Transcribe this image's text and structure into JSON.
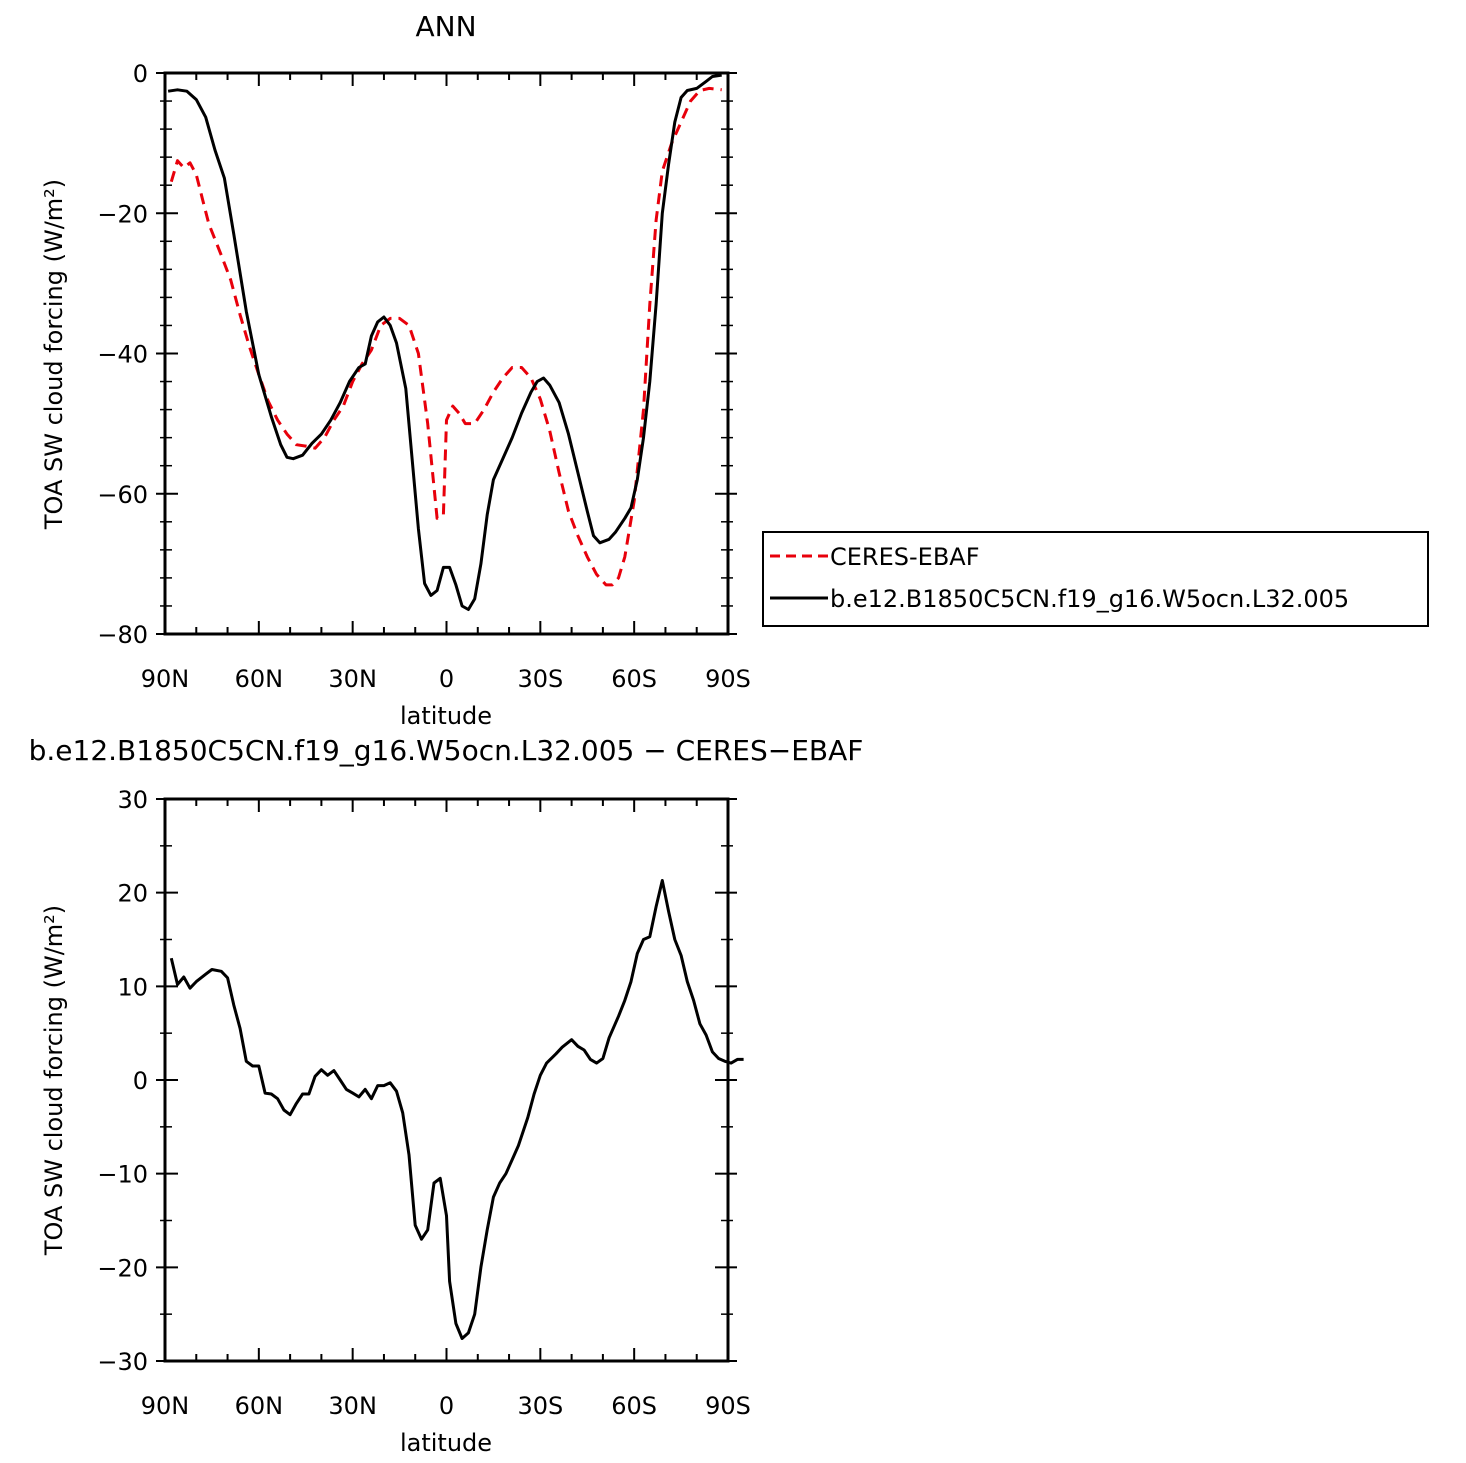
{
  "chart_data": [
    {
      "type": "line",
      "title": "ANN",
      "xlabel": "latitude",
      "ylabel": "TOA SW cloud forcing (W/m²)",
      "xlim": [
        90,
        -90
      ],
      "ylim": [
        -80,
        0
      ],
      "x_ticks": [
        {
          "value": 90,
          "label": "90N"
        },
        {
          "value": 60,
          "label": "60N"
        },
        {
          "value": 30,
          "label": "30N"
        },
        {
          "value": 0,
          "label": "0"
        },
        {
          "value": -30,
          "label": "30S"
        },
        {
          "value": -60,
          "label": "60S"
        },
        {
          "value": -90,
          "label": "90S"
        }
      ],
      "y_ticks": [
        {
          "value": 0,
          "label": "0"
        },
        {
          "value": -20,
          "label": "−20"
        },
        {
          "value": -40,
          "label": "−40"
        },
        {
          "value": -60,
          "label": "−60"
        },
        {
          "value": -80,
          "label": "−80"
        }
      ],
      "legend": {
        "placement": "right"
      },
      "series": [
        {
          "name": "CERES-EBAF",
          "color": "#e8000b",
          "dashed": true,
          "points": [
            [
              88,
              -15.5
            ],
            [
              86,
              -12.5
            ],
            [
              84,
              -13.5
            ],
            [
              82,
              -12.8
            ],
            [
              80,
              -14.5
            ],
            [
              78,
              -18
            ],
            [
              76,
              -21.5
            ],
            [
              72,
              -26
            ],
            [
              69,
              -29.5
            ],
            [
              66,
              -34.5
            ],
            [
              63,
              -39
            ],
            [
              60,
              -43
            ],
            [
              57,
              -46.8
            ],
            [
              54,
              -49.5
            ],
            [
              51,
              -51.5
            ],
            [
              48,
              -53
            ],
            [
              45,
              -53.2
            ],
            [
              42,
              -53.5
            ],
            [
              39,
              -52
            ],
            [
              36,
              -49.5
            ],
            [
              33,
              -47.5
            ],
            [
              30,
              -44
            ],
            [
              27,
              -41.5
            ],
            [
              24,
              -39.5
            ],
            [
              21,
              -36
            ],
            [
              18,
              -35
            ],
            [
              15,
              -35
            ],
            [
              12,
              -36
            ],
            [
              9,
              -40
            ],
            [
              6,
              -50
            ],
            [
              3,
              -63.5
            ],
            [
              1,
              -63
            ],
            [
              0,
              -49.5
            ],
            [
              -2,
              -47.5
            ],
            [
              -4,
              -48.5
            ],
            [
              -6,
              -50
            ],
            [
              -9,
              -50
            ],
            [
              -12,
              -48
            ],
            [
              -15,
              -45.5
            ],
            [
              -18,
              -43.5
            ],
            [
              -21,
              -42
            ],
            [
              -24,
              -42
            ],
            [
              -27,
              -43.5
            ],
            [
              -30,
              -46.5
            ],
            [
              -33,
              -51
            ],
            [
              -36,
              -57
            ],
            [
              -39,
              -62.5
            ],
            [
              -42,
              -66
            ],
            [
              -45,
              -69
            ],
            [
              -48,
              -71.5
            ],
            [
              -51,
              -73
            ],
            [
              -53,
              -73
            ],
            [
              -55,
              -72
            ],
            [
              -57,
              -69
            ],
            [
              -60,
              -61
            ],
            [
              -63,
              -48
            ],
            [
              -65,
              -33
            ],
            [
              -67,
              -21
            ],
            [
              -69,
              -14
            ],
            [
              -72,
              -10
            ],
            [
              -75,
              -7
            ],
            [
              -78,
              -4
            ],
            [
              -81,
              -2.5
            ],
            [
              -84,
              -2.2
            ],
            [
              -88,
              -2.4
            ]
          ]
        },
        {
          "name": "b.e12.B1850C5CN.f19_g16.W5ocn.L32.005",
          "color": "#000000",
          "dashed": false,
          "points": [
            [
              89,
              -2.6
            ],
            [
              86,
              -2.4
            ],
            [
              83,
              -2.6
            ],
            [
              80,
              -3.8
            ],
            [
              77,
              -6.3
            ],
            [
              74,
              -11
            ],
            [
              71,
              -15
            ],
            [
              68,
              -23
            ],
            [
              64,
              -34
            ],
            [
              60,
              -43
            ],
            [
              56,
              -49
            ],
            [
              53,
              -53
            ],
            [
              51,
              -54.8
            ],
            [
              49,
              -55
            ],
            [
              46,
              -54.5
            ],
            [
              43,
              -52.8
            ],
            [
              40,
              -51.5
            ],
            [
              37,
              -49.5
            ],
            [
              34,
              -47
            ],
            [
              31,
              -44
            ],
            [
              28,
              -42
            ],
            [
              26,
              -41.5
            ],
            [
              24,
              -37.5
            ],
            [
              22,
              -35.5
            ],
            [
              20,
              -34.8
            ],
            [
              18,
              -36
            ],
            [
              16,
              -38.5
            ],
            [
              13,
              -45
            ],
            [
              11,
              -55
            ],
            [
              9,
              -65
            ],
            [
              7,
              -72.8
            ],
            [
              5,
              -74.5
            ],
            [
              3,
              -73.8
            ],
            [
              1,
              -70.5
            ],
            [
              -1,
              -70.5
            ],
            [
              -3,
              -73
            ],
            [
              -5,
              -76
            ],
            [
              -7,
              -76.5
            ],
            [
              -9,
              -75
            ],
            [
              -11,
              -70
            ],
            [
              -13,
              -63
            ],
            [
              -15,
              -58
            ],
            [
              -18,
              -55
            ],
            [
              -21,
              -52
            ],
            [
              -24,
              -48.5
            ],
            [
              -27,
              -45.5
            ],
            [
              -29,
              -44
            ],
            [
              -31,
              -43.5
            ],
            [
              -33,
              -44.5
            ],
            [
              -36,
              -47
            ],
            [
              -39,
              -51.5
            ],
            [
              -42,
              -57
            ],
            [
              -45,
              -62.5
            ],
            [
              -47,
              -66
            ],
            [
              -49,
              -67
            ],
            [
              -52,
              -66.5
            ],
            [
              -54,
              -65.5
            ],
            [
              -57,
              -63.5
            ],
            [
              -59,
              -62
            ],
            [
              -61,
              -58
            ],
            [
              -63,
              -52
            ],
            [
              -65,
              -44
            ],
            [
              -67,
              -33
            ],
            [
              -69,
              -20
            ],
            [
              -71,
              -13
            ],
            [
              -73,
              -7
            ],
            [
              -75,
              -3.5
            ],
            [
              -77,
              -2.5
            ],
            [
              -80,
              -2.2
            ],
            [
              -83,
              -1.2
            ],
            [
              -85,
              -0.5
            ],
            [
              -88,
              -0.3
            ]
          ]
        }
      ]
    },
    {
      "type": "line",
      "title": "b.e12.B1850C5CN.f19_g16.W5ocn.L32.005 − CERES−EBAF",
      "xlabel": "latitude",
      "ylabel": "TOA SW cloud forcing (W/m²)",
      "xlim": [
        90,
        -90
      ],
      "ylim": [
        -30,
        30
      ],
      "x_ticks": [
        {
          "value": 90,
          "label": "90N"
        },
        {
          "value": 60,
          "label": "60N"
        },
        {
          "value": 30,
          "label": "30N"
        },
        {
          "value": 0,
          "label": "0"
        },
        {
          "value": -30,
          "label": "30S"
        },
        {
          "value": -60,
          "label": "60S"
        },
        {
          "value": -90,
          "label": "90S"
        }
      ],
      "y_ticks": [
        {
          "value": 30,
          "label": "30"
        },
        {
          "value": 20,
          "label": "20"
        },
        {
          "value": 10,
          "label": "10"
        },
        {
          "value": 0,
          "label": "0"
        },
        {
          "value": -10,
          "label": "−10"
        },
        {
          "value": -20,
          "label": "−20"
        },
        {
          "value": -30,
          "label": "−30"
        }
      ],
      "series": [
        {
          "color": "#000000",
          "dashed": false,
          "points": [
            [
              88,
              13
            ],
            [
              86,
              10.2
            ],
            [
              84,
              11
            ],
            [
              82,
              9.8
            ],
            [
              80,
              10.5
            ],
            [
              77,
              11.3
            ],
            [
              75,
              11.8
            ],
            [
              72,
              11.6
            ],
            [
              70,
              10.9
            ],
            [
              68,
              8
            ],
            [
              66,
              5.5
            ],
            [
              64,
              2
            ],
            [
              62,
              1.5
            ],
            [
              60,
              1.5
            ],
            [
              58,
              -1.4
            ],
            [
              56,
              -1.5
            ],
            [
              54,
              -2
            ],
            [
              52,
              -3.2
            ],
            [
              50,
              -3.7
            ],
            [
              48,
              -2.5
            ],
            [
              46,
              -1.5
            ],
            [
              44,
              -1.5
            ],
            [
              42,
              0.4
            ],
            [
              40,
              1.1
            ],
            [
              38,
              0.5
            ],
            [
              36,
              1
            ],
            [
              34,
              0
            ],
            [
              32,
              -1
            ],
            [
              30,
              -1.4
            ],
            [
              28,
              -1.8
            ],
            [
              26,
              -1
            ],
            [
              24,
              -2
            ],
            [
              22,
              -0.6
            ],
            [
              20,
              -0.6
            ],
            [
              18,
              -0.3
            ],
            [
              16,
              -1.2
            ],
            [
              14,
              -3.5
            ],
            [
              12,
              -8
            ],
            [
              10,
              -15.5
            ],
            [
              8,
              -17
            ],
            [
              6,
              -16
            ],
            [
              4,
              -11
            ],
            [
              2,
              -10.5
            ],
            [
              0,
              -14.5
            ],
            [
              -1,
              -21.5
            ],
            [
              -3,
              -26
            ],
            [
              -5,
              -27.6
            ],
            [
              -7,
              -27
            ],
            [
              -9,
              -25
            ],
            [
              -11,
              -20
            ],
            [
              -13,
              -16
            ],
            [
              -15,
              -12.5
            ],
            [
              -17,
              -11
            ],
            [
              -19,
              -10
            ],
            [
              -21,
              -8.5
            ],
            [
              -23,
              -7
            ],
            [
              -26,
              -4
            ],
            [
              -28,
              -1.5
            ],
            [
              -30,
              0.5
            ],
            [
              -32,
              1.8
            ],
            [
              -35,
              2.8
            ],
            [
              -37,
              3.5
            ],
            [
              -40,
              4.3
            ],
            [
              -42,
              3.6
            ],
            [
              -44,
              3.2
            ],
            [
              -46,
              2.2
            ],
            [
              -48,
              1.8
            ],
            [
              -50,
              2.3
            ],
            [
              -52,
              4.5
            ],
            [
              -55,
              6.8
            ],
            [
              -57,
              8.5
            ],
            [
              -59,
              10.5
            ],
            [
              -61,
              13.5
            ],
            [
              -63,
              15
            ],
            [
              -65,
              15.3
            ],
            [
              -67,
              18.5
            ],
            [
              -69,
              21.3
            ],
            [
              -71,
              18
            ],
            [
              -73,
              15
            ],
            [
              -75,
              13.3
            ],
            [
              -77,
              10.5
            ],
            [
              -79,
              8.5
            ],
            [
              -81,
              6
            ],
            [
              -83,
              4.8
            ],
            [
              -85,
              3
            ],
            [
              -87,
              2.3
            ],
            [
              -89,
              2
            ],
            [
              -91,
              1.8
            ],
            [
              -93,
              2.2
            ],
            [
              -95,
              2.2
            ]
          ]
        }
      ]
    }
  ]
}
